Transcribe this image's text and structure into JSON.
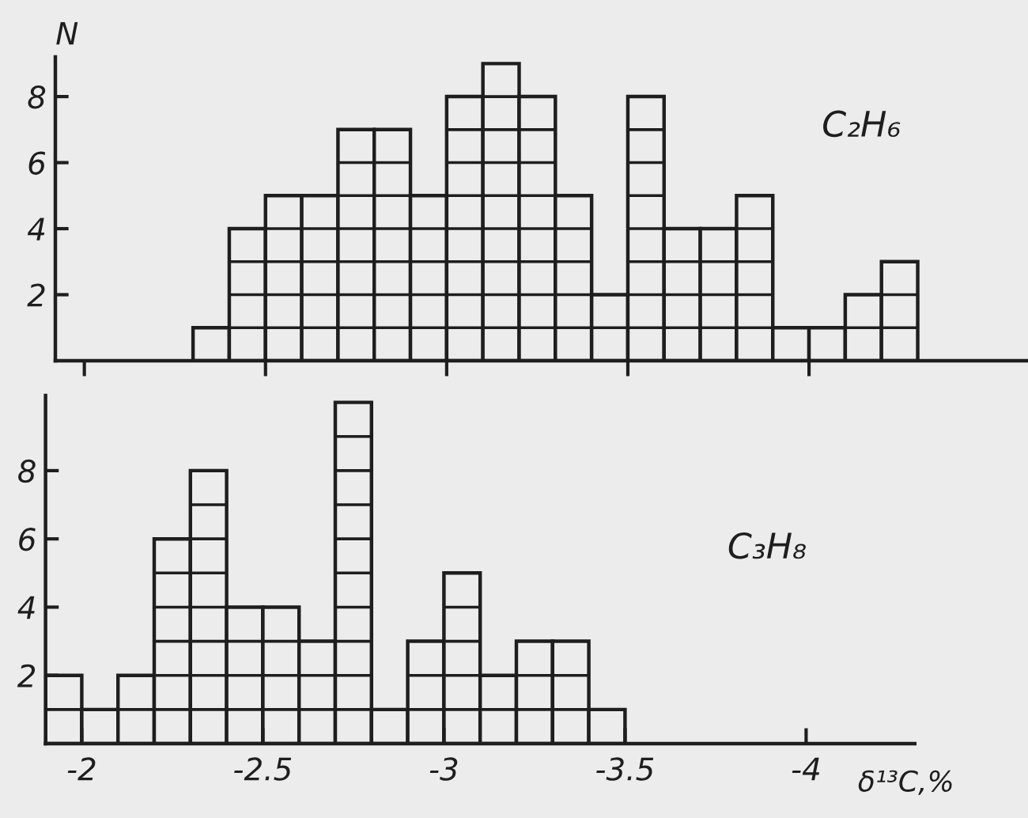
{
  "chart_data": [
    {
      "type": "histogram",
      "title": "C₂H₆",
      "ylabel": "N",
      "bins": [
        -2.3,
        -2.4,
        -2.5,
        -2.6,
        -2.7,
        -2.8,
        -2.9,
        -3.0,
        -3.1,
        -3.2,
        -3.3,
        -3.4,
        -3.5,
        -3.6,
        -3.7,
        -3.8,
        -3.9,
        -4.0,
        -4.1,
        -4.2,
        -4.3
      ],
      "values": [
        1,
        4,
        5,
        5,
        7,
        7,
        5,
        8,
        9,
        8,
        5,
        2,
        8,
        4,
        4,
        5,
        1,
        1,
        2,
        3
      ],
      "xlim": [
        -1.92,
        -4.6
      ],
      "xticks": [
        -2,
        -2.5,
        -3,
        -3.5,
        -4
      ],
      "ylim": [
        0,
        9.2
      ],
      "yticks": [
        2,
        4,
        6,
        8
      ],
      "tick_labels": "y"
    },
    {
      "type": "histogram",
      "title": "C₃H₈",
      "xlabel": "δ¹³C,%",
      "bins": [
        -1.9,
        -2.0,
        -2.1,
        -2.2,
        -2.3,
        -2.4,
        -2.5,
        -2.6,
        -2.7,
        -2.8,
        -2.9,
        -3.0,
        -3.1,
        -3.2,
        -3.3,
        -3.4,
        -3.5
      ],
      "values": [
        2,
        1,
        2,
        6,
        8,
        4,
        4,
        3,
        10,
        1,
        3,
        5,
        2,
        3,
        3,
        1
      ],
      "xlim": [
        -1.9,
        -4.3
      ],
      "xticks": [
        -2,
        -2.5,
        -3,
        -3.5,
        -4
      ],
      "ylim": [
        0,
        10.2
      ],
      "yticks": [
        2,
        4,
        6,
        8
      ]
    }
  ]
}
